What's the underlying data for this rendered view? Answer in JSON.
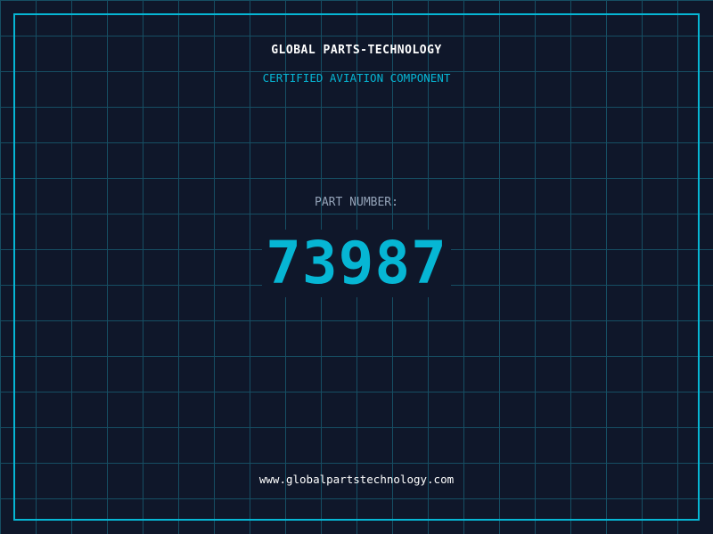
{
  "header": {
    "title": "GLOBAL PARTS-TECHNOLOGY",
    "subtitle": "CERTIFIED AVIATION COMPONENT"
  },
  "part": {
    "label": "PART NUMBER:",
    "number": "73987"
  },
  "footer": {
    "url": "www.globalpartstechnology.com"
  },
  "colors": {
    "background": "#0f172a",
    "accent": "#06b6d4",
    "grid": "#164e63",
    "label": "#94a3b8"
  }
}
